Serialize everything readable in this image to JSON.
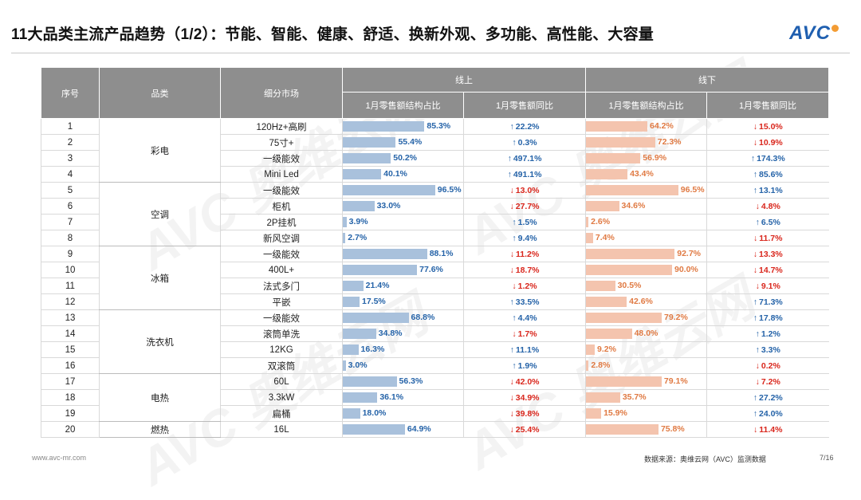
{
  "title": "11大品类主流产品趋势（1/2）：节能、智能、健康、舒适、换新外观、多功能、高性能、大容量",
  "logo": "AVC",
  "watermark_text": "AVC 奥维云网",
  "headers": {
    "index": "序号",
    "category": "品类",
    "segment": "细分市场",
    "online": "线上",
    "offline": "线下",
    "share": "1月零售额结构占比",
    "yoy": "1月零售额同比"
  },
  "colors": {
    "online_bar": "#a9c1dc",
    "offline_bar": "#f4c4ae",
    "up": "#2563a8",
    "down": "#d9261c",
    "header_bg": "#8e8e8e"
  },
  "groups": [
    {
      "category": "彩电",
      "rows": [
        {
          "idx": "1",
          "seg": "120Hz+高刷",
          "on_share": 85.3,
          "on_share_label": "85.3%",
          "on_yoy": "22.2%",
          "on_dir": "up",
          "off_share": 64.2,
          "off_share_label": "64.2%",
          "off_yoy": "15.0%",
          "off_dir": "down"
        },
        {
          "idx": "2",
          "seg": "75寸+",
          "on_share": 55.4,
          "on_share_label": "55.4%",
          "on_yoy": "0.3%",
          "on_dir": "up",
          "off_share": 72.3,
          "off_share_label": "72.3%",
          "off_yoy": "10.9%",
          "off_dir": "down"
        },
        {
          "idx": "3",
          "seg": "一级能效",
          "on_share": 50.2,
          "on_share_label": "50.2%",
          "on_yoy": "497.1%",
          "on_dir": "up",
          "off_share": 56.9,
          "off_share_label": "56.9%",
          "off_yoy": "174.3%",
          "off_dir": "up"
        },
        {
          "idx": "4",
          "seg": "Mini Led",
          "on_share": 40.1,
          "on_share_label": "40.1%",
          "on_yoy": "491.1%",
          "on_dir": "up",
          "off_share": 43.4,
          "off_share_label": "43.4%",
          "off_yoy": "85.6%",
          "off_dir": "up"
        }
      ]
    },
    {
      "category": "空调",
      "rows": [
        {
          "idx": "5",
          "seg": "一级能效",
          "on_share": 96.5,
          "on_share_label": "96.5%",
          "on_yoy": "13.0%",
          "on_dir": "down",
          "off_share": 96.5,
          "off_share_label": "96.5%",
          "off_yoy": "13.1%",
          "off_dir": "up"
        },
        {
          "idx": "6",
          "seg": "柜机",
          "on_share": 33.0,
          "on_share_label": "33.0%",
          "on_yoy": "27.7%",
          "on_dir": "down",
          "off_share": 34.6,
          "off_share_label": "34.6%",
          "off_yoy": "4.8%",
          "off_dir": "down"
        },
        {
          "idx": "7",
          "seg": "2P挂机",
          "on_share": 3.9,
          "on_share_label": "3.9%",
          "on_yoy": "1.5%",
          "on_dir": "up",
          "off_share": 2.6,
          "off_share_label": "2.6%",
          "off_yoy": "6.5%",
          "off_dir": "up"
        },
        {
          "idx": "8",
          "seg": "新风空调",
          "on_share": 2.7,
          "on_share_label": "2.7%",
          "on_yoy": "9.4%",
          "on_dir": "up",
          "off_share": 7.4,
          "off_share_label": "7.4%",
          "off_yoy": "11.7%",
          "off_dir": "down"
        }
      ]
    },
    {
      "category": "冰箱",
      "rows": [
        {
          "idx": "9",
          "seg": "一级能效",
          "on_share": 88.1,
          "on_share_label": "88.1%",
          "on_yoy": "11.2%",
          "on_dir": "down",
          "off_share": 92.7,
          "off_share_label": "92.7%",
          "off_yoy": "13.3%",
          "off_dir": "down"
        },
        {
          "idx": "10",
          "seg": "400L+",
          "on_share": 77.6,
          "on_share_label": "77.6%",
          "on_yoy": "18.7%",
          "on_dir": "down",
          "off_share": 90.0,
          "off_share_label": "90.0%",
          "off_yoy": "14.7%",
          "off_dir": "down"
        },
        {
          "idx": "11",
          "seg": "法式多门",
          "on_share": 21.4,
          "on_share_label": "21.4%",
          "on_yoy": "1.2%",
          "on_dir": "down",
          "off_share": 30.5,
          "off_share_label": "30.5%",
          "off_yoy": "9.1%",
          "off_dir": "down"
        },
        {
          "idx": "12",
          "seg": "平嵌",
          "on_share": 17.5,
          "on_share_label": "17.5%",
          "on_yoy": "33.5%",
          "on_dir": "up",
          "off_share": 42.6,
          "off_share_label": "42.6%",
          "off_yoy": "71.3%",
          "off_dir": "up"
        }
      ]
    },
    {
      "category": "洗衣机",
      "rows": [
        {
          "idx": "13",
          "seg": "一级能效",
          "on_share": 68.8,
          "on_share_label": "68.8%",
          "on_yoy": "4.4%",
          "on_dir": "up",
          "off_share": 79.2,
          "off_share_label": "79.2%",
          "off_yoy": "17.8%",
          "off_dir": "up"
        },
        {
          "idx": "14",
          "seg": "滚筒单洗",
          "on_share": 34.8,
          "on_share_label": "34.8%",
          "on_yoy": "1.7%",
          "on_dir": "down",
          "off_share": 48.0,
          "off_share_label": "48.0%",
          "off_yoy": "1.2%",
          "off_dir": "up"
        },
        {
          "idx": "15",
          "seg": "12KG",
          "on_share": 16.3,
          "on_share_label": "16.3%",
          "on_yoy": "11.1%",
          "on_dir": "up",
          "off_share": 9.2,
          "off_share_label": "9.2%",
          "off_yoy": "3.3%",
          "off_dir": "up"
        },
        {
          "idx": "16",
          "seg": "双滚筒",
          "on_share": 3.0,
          "on_share_label": "3.0%",
          "on_yoy": "1.9%",
          "on_dir": "up",
          "off_share": 2.8,
          "off_share_label": "2.8%",
          "off_yoy": "0.2%",
          "off_dir": "down"
        }
      ]
    },
    {
      "category": "电热",
      "rows": [
        {
          "idx": "17",
          "seg": "60L",
          "on_share": 56.3,
          "on_share_label": "56.3%",
          "on_yoy": "42.0%",
          "on_dir": "down",
          "off_share": 79.1,
          "off_share_label": "79.1%",
          "off_yoy": "7.2%",
          "off_dir": "down"
        },
        {
          "idx": "18",
          "seg": "3.3kW",
          "on_share": 36.1,
          "on_share_label": "36.1%",
          "on_yoy": "34.9%",
          "on_dir": "down",
          "off_share": 35.7,
          "off_share_label": "35.7%",
          "off_yoy": "27.2%",
          "off_dir": "up"
        },
        {
          "idx": "19",
          "seg": "扁桶",
          "on_share": 18.0,
          "on_share_label": "18.0%",
          "on_yoy": "39.8%",
          "on_dir": "down",
          "off_share": 15.9,
          "off_share_label": "15.9%",
          "off_yoy": "24.0%",
          "off_dir": "up"
        }
      ]
    },
    {
      "category": "燃热",
      "rows": [
        {
          "idx": "20",
          "seg": "16L",
          "on_share": 64.9,
          "on_share_label": "64.9%",
          "on_yoy": "25.4%",
          "on_dir": "down",
          "off_share": 75.8,
          "off_share_label": "75.8%",
          "off_yoy": "11.4%",
          "off_dir": "down"
        }
      ]
    }
  ],
  "footer": {
    "website": "www.avc-mr.com",
    "source": "数据来源：奥维云网（AVC）监测数据",
    "page": "7/16"
  }
}
